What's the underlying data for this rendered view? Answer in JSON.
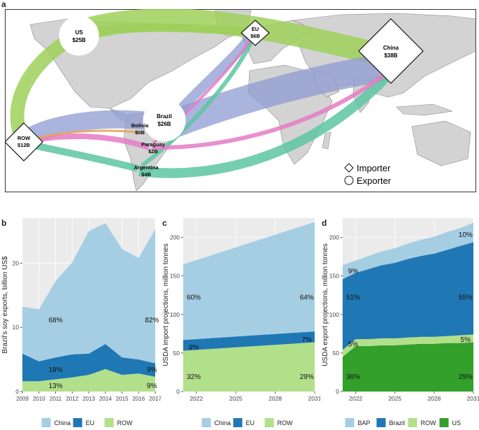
{
  "panels": {
    "a": "a",
    "b": "b",
    "c": "c",
    "d": "d"
  },
  "colors": {
    "ocean": "#ffffff",
    "land": "#d3d3d3",
    "land_stroke": "#8a8a8a",
    "china": "#a6cee3",
    "eu": "#1f78b4",
    "row": "#b2df8a",
    "us": "#33a02c",
    "bap": "#a6cee3",
    "brazil": "#1f78b4",
    "flow_us": "#9ed05a",
    "flow_brazil": "#8e9bd1",
    "flow_argentina": "#5cc6a1",
    "flow_paraguay": "#e57bc4",
    "flow_bolivia": "#e8a35a"
  },
  "map": {
    "nodes": [
      {
        "id": "us",
        "name": "US",
        "value": "$25B",
        "shape": "circle"
      },
      {
        "id": "eu",
        "name": "EU",
        "value": "$6B",
        "shape": "diamond"
      },
      {
        "id": "china",
        "name": "China",
        "value": "$38B",
        "shape": "diamond"
      },
      {
        "id": "row",
        "name": "ROW",
        "value": "$12B",
        "shape": "diamond"
      },
      {
        "id": "brazil",
        "name": "Brazil",
        "value": "$26B",
        "shape": "circle"
      },
      {
        "id": "bolivia",
        "name": "Bolivia",
        "value": "$0B",
        "shape": "none"
      },
      {
        "id": "paraguay",
        "name": "Paraguay",
        "value": "$2B",
        "shape": "none"
      },
      {
        "id": "argentina",
        "name": "Argentina",
        "value": "$4B",
        "shape": "none"
      }
    ],
    "legend": {
      "importer": "Importer",
      "exporter": "Exporter"
    }
  },
  "chart_data": [
    {
      "type": "area",
      "panel": "b",
      "ylabel": "Brazil's soy exports, billion US$",
      "x": [
        2009,
        2010,
        2011,
        2012,
        2013,
        2014,
        2015,
        2016,
        2017
      ],
      "x_ticks": [
        "2009",
        "2010",
        "2011",
        "2012",
        "2013",
        "2014",
        "2015",
        "2016",
        "2017"
      ],
      "ylim": [
        0,
        27
      ],
      "y_ticks": [
        "0",
        "10",
        "20"
      ],
      "y_tick_values": [
        0,
        10,
        20
      ],
      "series": [
        {
          "name": "ROW",
          "values": [
            1.6,
            1.6,
            1.9,
            2.2,
            2.6,
            3.5,
            2.6,
            2.8,
            2.3
          ]
        },
        {
          "name": "EU",
          "values": [
            4.3,
            3.1,
            3.4,
            3.6,
            3.3,
            3.9,
            2.7,
            2.2,
            2.1
          ]
        },
        {
          "name": "China",
          "values": [
            7.3,
            8.1,
            11.9,
            14.3,
            19.1,
            18.8,
            16.9,
            15.8,
            20.9
          ]
        }
      ],
      "annotations": [
        {
          "text": "68%",
          "x": 2011,
          "y": 11.2
        },
        {
          "text": "82%",
          "x": 2016.8,
          "y": 11.2
        },
        {
          "text": "18%",
          "x": 2011,
          "y": 3.5
        },
        {
          "text": "9%",
          "x": 2016.8,
          "y": 3.5
        },
        {
          "text": "13%",
          "x": 2011,
          "y": 1.0
        },
        {
          "text": "9%",
          "x": 2016.8,
          "y": 1.0
        }
      ],
      "legend": [
        {
          "name": "China",
          "color": "#a6cee3"
        },
        {
          "name": "EU",
          "color": "#1f78b4"
        },
        {
          "name": "ROW",
          "color": "#b2df8a"
        }
      ]
    },
    {
      "type": "area",
      "panel": "c",
      "ylabel": "USDA import projections, million tonnes",
      "x": [
        2021,
        2031
      ],
      "x_ticks": [
        "2022",
        "2025",
        "2028",
        "2031"
      ],
      "x_tick_values": [
        2022,
        2025,
        2028,
        2031
      ],
      "ylim": [
        0,
        225
      ],
      "y_ticks": [
        "0",
        "50",
        "100",
        "150",
        "200"
      ],
      "y_tick_values": [
        0,
        50,
        100,
        150,
        200
      ],
      "series": [
        {
          "name": "ROW",
          "values": [
            53,
            64
          ]
        },
        {
          "name": "EU",
          "values": [
            14,
            14
          ]
        },
        {
          "name": "China",
          "values": [
            98,
            142
          ]
        }
      ],
      "annotations": [
        {
          "text": "60%",
          "x": 2021.8,
          "y": 123
        },
        {
          "text": "64%",
          "x": 2030.4,
          "y": 123
        },
        {
          "text": "9%",
          "x": 2021.8,
          "y": 58
        },
        {
          "text": "7%",
          "x": 2030.4,
          "y": 68
        },
        {
          "text": "32%",
          "x": 2021.8,
          "y": 20
        },
        {
          "text": "29%",
          "x": 2030.4,
          "y": 20
        }
      ],
      "legend": [
        {
          "name": "China",
          "color": "#a6cee3"
        },
        {
          "name": "EU",
          "color": "#1f78b4"
        },
        {
          "name": "ROW",
          "color": "#b2df8a"
        }
      ]
    },
    {
      "type": "area",
      "panel": "d",
      "ylabel": "USDA export projections, million tonnes",
      "x": [
        2021,
        2022,
        2023,
        2024,
        2025,
        2026,
        2027,
        2028,
        2029,
        2030,
        2031
      ],
      "x_ticks": [
        "2022",
        "2025",
        "2028",
        "2031"
      ],
      "x_tick_values": [
        2022,
        2025,
        2028,
        2031
      ],
      "ylim": [
        0,
        225
      ],
      "y_ticks": [
        "0",
        "50",
        "100",
        "150",
        "200"
      ],
      "y_tick_values": [
        0,
        50,
        100,
        150,
        200
      ],
      "series": [
        {
          "name": "US",
          "values": [
            45,
            59,
            59,
            60,
            60,
            61,
            62,
            62,
            63,
            63,
            64
          ]
        },
        {
          "name": "ROW",
          "values": [
            9,
            9,
            9,
            9,
            9,
            9,
            9,
            9,
            9,
            10,
            10
          ]
        },
        {
          "name": "Brazil",
          "values": [
            92,
            86,
            91,
            95,
            98,
            102,
            105,
            108,
            112,
            116,
            120
          ]
        },
        {
          "name": "BAP",
          "values": [
            18,
            16,
            17,
            18,
            19,
            20,
            21,
            22,
            23,
            23,
            25
          ]
        }
      ],
      "annotations": [
        {
          "text": "9%",
          "x": 2021.8,
          "y": 157
        },
        {
          "text": "10%",
          "x": 2030.4,
          "y": 204
        },
        {
          "text": "51%",
          "x": 2021.8,
          "y": 123
        },
        {
          "text": "55%",
          "x": 2030.4,
          "y": 123
        },
        {
          "text": "5%",
          "x": 2021.8,
          "y": 62
        },
        {
          "text": "5%",
          "x": 2030.4,
          "y": 68
        },
        {
          "text": "36%",
          "x": 2021.8,
          "y": 20
        },
        {
          "text": "29%",
          "x": 2030.4,
          "y": 20
        }
      ],
      "legend": [
        {
          "name": "BAP",
          "color": "#a6cee3"
        },
        {
          "name": "Brazil",
          "color": "#1f78b4"
        },
        {
          "name": "ROW",
          "color": "#b2df8a"
        },
        {
          "name": "US",
          "color": "#33a02c"
        }
      ]
    }
  ]
}
